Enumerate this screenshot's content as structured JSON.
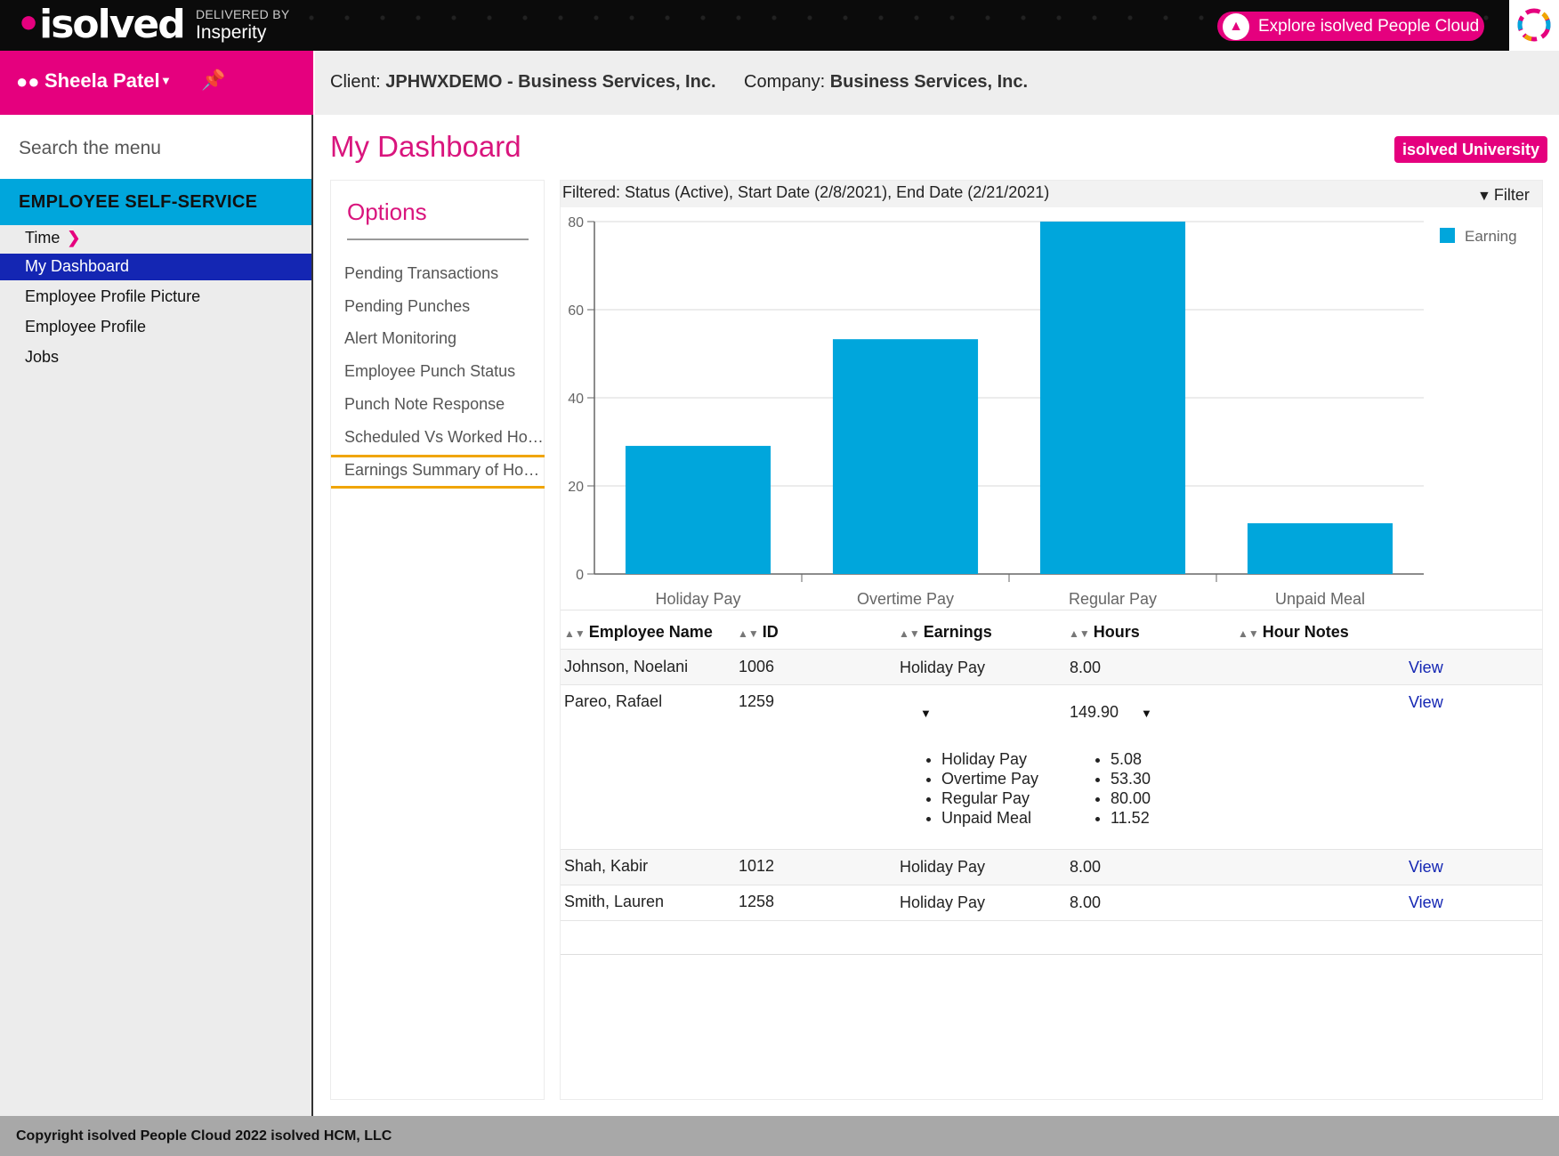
{
  "topbar": {
    "logo_dot": "•",
    "logo_text": "isolved",
    "delivered_by": "DELIVERED BY",
    "partner": "Insperity",
    "explore_label": "Explore isolved People Cloud",
    "rocket_icon": "rocket-icon",
    "cloud_logo_icon": "people-cloud-logo"
  },
  "sidebar": {
    "user_name": "Sheela Patel",
    "search_placeholder": "Search the menu",
    "section_title": "EMPLOYEE SELF-SERVICE",
    "items": [
      {
        "label": "Time",
        "has_chevron": true
      },
      {
        "label": "My Dashboard",
        "active": true
      },
      {
        "label": "Employee Profile Picture"
      },
      {
        "label": "Employee Profile"
      },
      {
        "label": "Jobs"
      }
    ]
  },
  "header": {
    "client_label": "Client:",
    "client_value": "JPHWXDEMO - Business Services, Inc.",
    "company_label": "Company:",
    "company_value": "Business Services, Inc."
  },
  "page": {
    "title": "My Dashboard",
    "university_button": "isolved University"
  },
  "options": {
    "title": "Options",
    "items": [
      "Pending Transactions",
      "Pending Punches",
      "Alert Monitoring",
      "Employee Punch Status",
      "Punch Note Response",
      "Scheduled Vs Worked Hours",
      "Earnings Summary of Hours"
    ],
    "selected_index": 6
  },
  "filter": {
    "text": "Filtered: Status (Active), Start Date (2/8/2021), End Date (2/21/2021)",
    "button_label": "Filter"
  },
  "chart_data": {
    "type": "bar",
    "categories": [
      "Holiday Pay",
      "Overtime Pay",
      "Regular Pay",
      "Unpaid Meal"
    ],
    "series": [
      {
        "name": "Earning",
        "values": [
          29.08,
          53.3,
          80.0,
          11.52
        ]
      }
    ],
    "ylim": [
      0,
      80
    ],
    "yticks": [
      0,
      20,
      40,
      60,
      80
    ],
    "legend_position": "top-right",
    "grid": true,
    "color": "#00a6dc"
  },
  "table": {
    "columns": [
      "Employee Name",
      "ID",
      "Earnings",
      "Hours",
      "Hour Notes"
    ],
    "view_label": "View",
    "rows": [
      {
        "name": "Johnson, Noelani",
        "id": "1006",
        "earnings": "Holiday Pay",
        "hours": "8.00"
      },
      {
        "name": "Pareo, Rafael",
        "id": "1259",
        "earnings": "",
        "hours": "149.90",
        "breakdown_earnings": [
          "Holiday Pay",
          "Overtime Pay",
          "Regular Pay",
          "Unpaid Meal"
        ],
        "breakdown_hours": [
          "5.08",
          "53.30",
          "80.00",
          "11.52"
        ]
      },
      {
        "name": "Shah, Kabir",
        "id": "1012",
        "earnings": "Holiday Pay",
        "hours": "8.00"
      },
      {
        "name": "Smith, Lauren",
        "id": "1258",
        "earnings": "Holiday Pay",
        "hours": "8.00"
      }
    ]
  },
  "footer": {
    "text": "Copyright isolved People Cloud 2022 isolved HCM, LLC"
  }
}
